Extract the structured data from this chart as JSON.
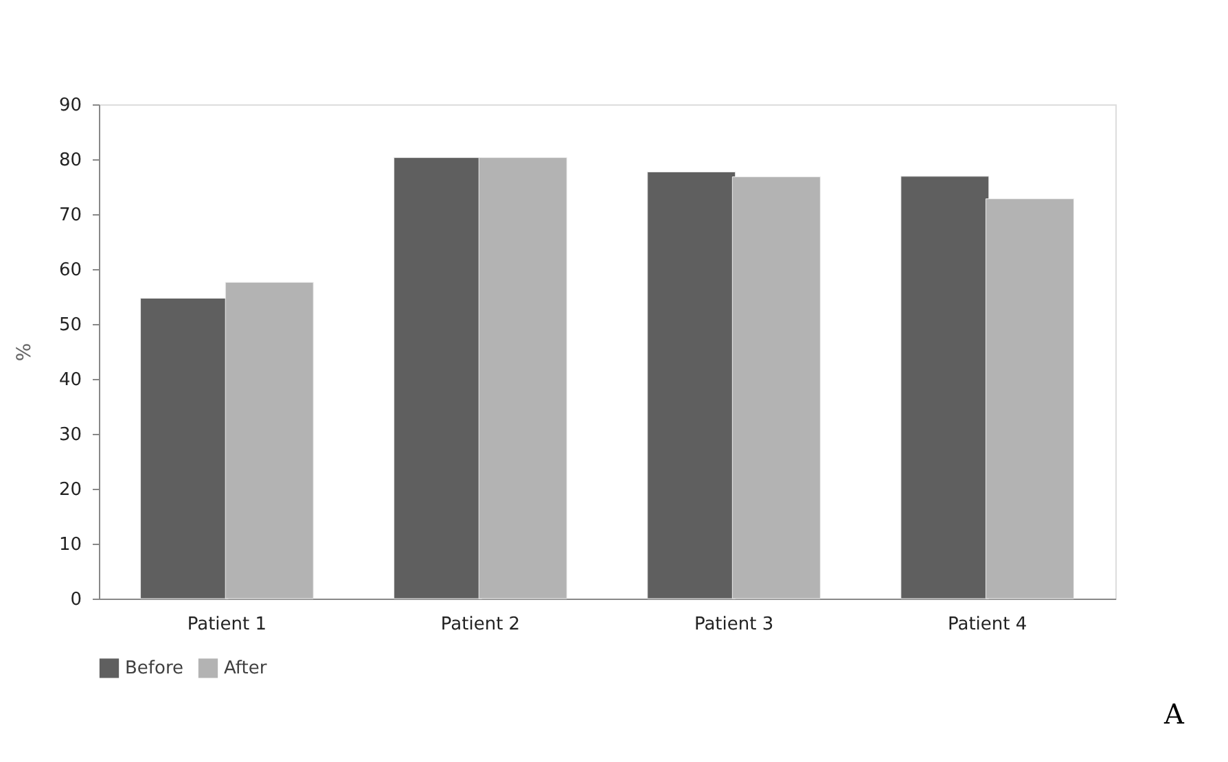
{
  "chart_data": {
    "type": "bar",
    "ylabel": "%",
    "categories": [
      "Patient 1",
      "Patient 2",
      "Patient 3",
      "Patient 4"
    ],
    "series": [
      {
        "name": "Before",
        "color": "#5f5f5f",
        "values": [
          54.7,
          80.3,
          77.7,
          76.9
        ]
      },
      {
        "name": "After",
        "color": "#b3b3b3",
        "values": [
          57.6,
          80.3,
          76.8,
          72.8
        ]
      }
    ],
    "ylim": [
      0,
      90
    ],
    "yticks": [
      0,
      10,
      20,
      30,
      40,
      50,
      60,
      70,
      80,
      90
    ],
    "grid": false,
    "legend": "bottom",
    "annotations": [
      "A"
    ]
  }
}
